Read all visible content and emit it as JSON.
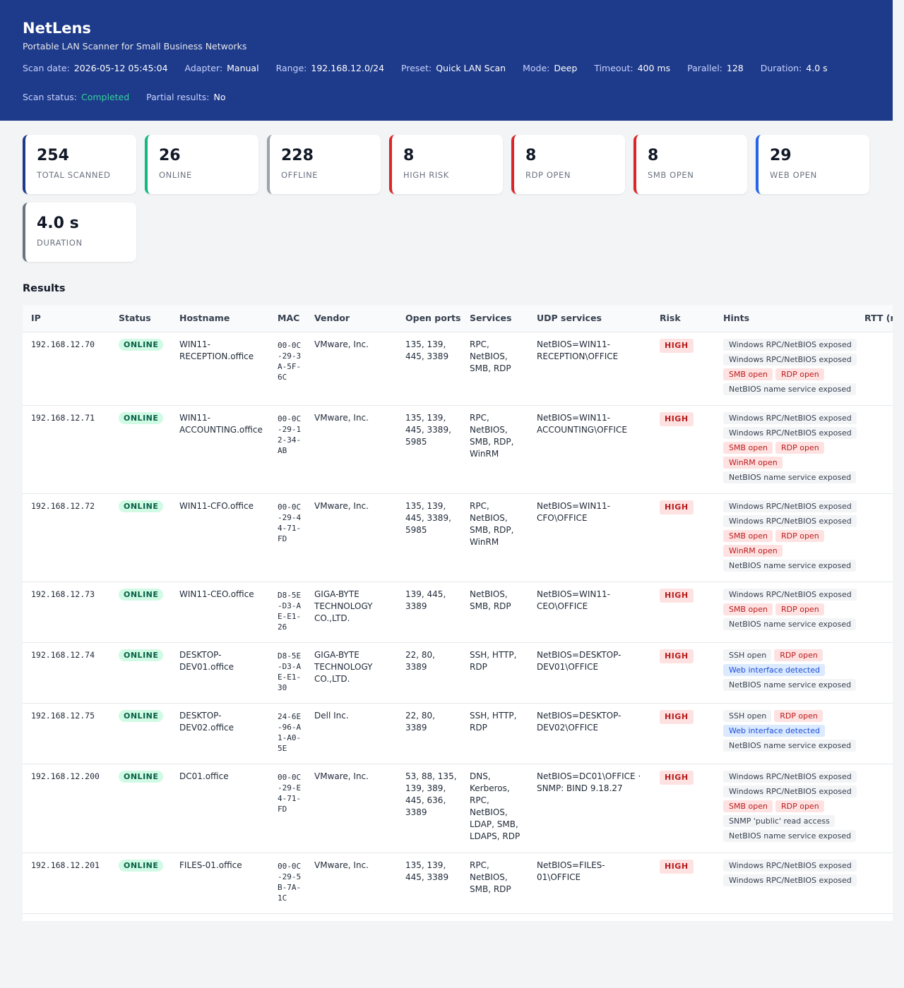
{
  "app": {
    "title": "NetLens",
    "subtitle": "Portable LAN Scanner for Small Business Networks"
  },
  "scan_meta": [
    {
      "key": "Scan date:",
      "value": "2026-05-12 05:45:04"
    },
    {
      "key": "Adapter:",
      "value": "Manual"
    },
    {
      "key": "Range:",
      "value": "192.168.12.0/24"
    },
    {
      "key": "Preset:",
      "value": "Quick LAN Scan"
    },
    {
      "key": "Mode:",
      "value": "Deep"
    },
    {
      "key": "Timeout:",
      "value": "400 ms"
    },
    {
      "key": "Parallel:",
      "value": "128"
    },
    {
      "key": "Duration:",
      "value": "4.0 s"
    }
  ],
  "scan_status": {
    "key": "Scan status:",
    "value": "Completed",
    "color": "#34d399"
  },
  "partial_results": {
    "key": "Partial results:",
    "value": "No"
  },
  "summary_cards": [
    {
      "value": "254",
      "label": "TOTAL SCANNED",
      "accent": "#1e3a8a"
    },
    {
      "value": "26",
      "label": "ONLINE",
      "accent": "#10b981"
    },
    {
      "value": "228",
      "label": "OFFLINE",
      "accent": "#9ca3af"
    },
    {
      "value": "8",
      "label": "HIGH RISK",
      "accent": "#dc2626"
    },
    {
      "value": "8",
      "label": "RDP OPEN",
      "accent": "#dc2626"
    },
    {
      "value": "8",
      "label": "SMB OPEN",
      "accent": "#dc2626"
    },
    {
      "value": "29",
      "label": "WEB OPEN",
      "accent": "#2563eb"
    },
    {
      "value": "4.0 s",
      "label": "DURATION",
      "accent": "#6b7280"
    }
  ],
  "results": {
    "title": "Results",
    "columns": [
      "IP",
      "Status",
      "Hostname",
      "MAC",
      "Vendor",
      "Open ports",
      "Services",
      "UDP services",
      "Risk",
      "Hints",
      "RTT (ms)"
    ],
    "rows": [
      {
        "ip": "192.168.12.70",
        "status": "ONLINE",
        "hostname": "WIN11-RECEPTION.office",
        "mac": "00-0C-29-3A-5F-6C",
        "vendor": "VMware, Inc.",
        "ports": "135, 139, 445, 3389",
        "services": "RPC, NetBIOS, SMB, RDP",
        "udp": "NetBIOS=WIN11-RECEPTION\\OFFICE",
        "risk": "HIGH",
        "hints": [
          {
            "text": "Windows RPC/NetBIOS exposed",
            "kind": "neutral"
          },
          {
            "text": "Windows RPC/NetBIOS exposed",
            "kind": "neutral"
          },
          {
            "text": "SMB open",
            "kind": "danger"
          },
          {
            "text": "RDP open",
            "kind": "danger"
          },
          {
            "text": "NetBIOS name service exposed",
            "kind": "neutral"
          }
        ]
      },
      {
        "ip": "192.168.12.71",
        "status": "ONLINE",
        "hostname": "WIN11-ACCOUNTING.office",
        "mac": "00-0C-29-12-34-AB",
        "vendor": "VMware, Inc.",
        "ports": "135, 139, 445, 3389, 5985",
        "services": "RPC, NetBIOS, SMB, RDP, WinRM",
        "udp": "NetBIOS=WIN11-ACCOUNTING\\OFFICE",
        "risk": "HIGH",
        "hints": [
          {
            "text": "Windows RPC/NetBIOS exposed",
            "kind": "neutral"
          },
          {
            "text": "Windows RPC/NetBIOS exposed",
            "kind": "neutral"
          },
          {
            "text": "SMB open",
            "kind": "danger"
          },
          {
            "text": "RDP open",
            "kind": "danger"
          },
          {
            "text": "WinRM open",
            "kind": "danger"
          },
          {
            "text": "NetBIOS name service exposed",
            "kind": "neutral"
          }
        ]
      },
      {
        "ip": "192.168.12.72",
        "status": "ONLINE",
        "hostname": "WIN11-CFO.office",
        "mac": "00-0C-29-44-71-FD",
        "vendor": "VMware, Inc.",
        "ports": "135, 139, 445, 3389, 5985",
        "services": "RPC, NetBIOS, SMB, RDP, WinRM",
        "udp": "NetBIOS=WIN11-CFO\\OFFICE",
        "risk": "HIGH",
        "hints": [
          {
            "text": "Windows RPC/NetBIOS exposed",
            "kind": "neutral"
          },
          {
            "text": "Windows RPC/NetBIOS exposed",
            "kind": "neutral"
          },
          {
            "text": "SMB open",
            "kind": "danger"
          },
          {
            "text": "RDP open",
            "kind": "danger"
          },
          {
            "text": "WinRM open",
            "kind": "danger"
          },
          {
            "text": "NetBIOS name service exposed",
            "kind": "neutral"
          }
        ]
      },
      {
        "ip": "192.168.12.73",
        "status": "ONLINE",
        "hostname": "WIN11-CEO.office",
        "mac": "D8-5E-D3-AE-E1-26",
        "vendor": "GIGA-BYTE TECHNOLOGY CO.,LTD.",
        "ports": "139, 445, 3389",
        "services": "NetBIOS, SMB, RDP",
        "udp": "NetBIOS=WIN11-CEO\\OFFICE",
        "risk": "HIGH",
        "hints": [
          {
            "text": "Windows RPC/NetBIOS exposed",
            "kind": "neutral"
          },
          {
            "text": "SMB open",
            "kind": "danger"
          },
          {
            "text": "RDP open",
            "kind": "danger"
          },
          {
            "text": "NetBIOS name service exposed",
            "kind": "neutral"
          }
        ]
      },
      {
        "ip": "192.168.12.74",
        "status": "ONLINE",
        "hostname": "DESKTOP-DEV01.office",
        "mac": "D8-5E-D3-AE-E1-30",
        "vendor": "GIGA-BYTE TECHNOLOGY CO.,LTD.",
        "ports": "22, 80, 3389",
        "services": "SSH, HTTP, RDP",
        "udp": "NetBIOS=DESKTOP-DEV01\\OFFICE",
        "risk": "HIGH",
        "hints": [
          {
            "text": "SSH open",
            "kind": "neutral"
          },
          {
            "text": "RDP open",
            "kind": "danger"
          },
          {
            "text": "Web interface detected",
            "kind": "info"
          },
          {
            "text": "NetBIOS name service exposed",
            "kind": "neutral"
          }
        ]
      },
      {
        "ip": "192.168.12.75",
        "status": "ONLINE",
        "hostname": "DESKTOP-DEV02.office",
        "mac": "24-6E-96-A1-A0-5E",
        "vendor": "Dell Inc.",
        "ports": "22, 80, 3389",
        "services": "SSH, HTTP, RDP",
        "udp": "NetBIOS=DESKTOP-DEV02\\OFFICE",
        "risk": "HIGH",
        "hints": [
          {
            "text": "SSH open",
            "kind": "neutral"
          },
          {
            "text": "RDP open",
            "kind": "danger"
          },
          {
            "text": "Web interface detected",
            "kind": "info"
          },
          {
            "text": "NetBIOS name service exposed",
            "kind": "neutral"
          }
        ]
      },
      {
        "ip": "192.168.12.200",
        "status": "ONLINE",
        "hostname": "DC01.office",
        "mac": "00-0C-29-E4-71-FD",
        "vendor": "VMware, Inc.",
        "ports": "53, 88, 135, 139, 389, 445, 636, 3389",
        "services": "DNS, Kerberos, RPC, NetBIOS, LDAP, SMB, LDAPS, RDP",
        "udp": "NetBIOS=DC01\\OFFICE · SNMP: BIND 9.18.27",
        "risk": "HIGH",
        "hints": [
          {
            "text": "Windows RPC/NetBIOS exposed",
            "kind": "neutral"
          },
          {
            "text": "Windows RPC/NetBIOS exposed",
            "kind": "neutral"
          },
          {
            "text": "SMB open",
            "kind": "danger"
          },
          {
            "text": "RDP open",
            "kind": "danger"
          },
          {
            "text": "SNMP 'public' read access",
            "kind": "neutral"
          },
          {
            "text": "NetBIOS name service exposed",
            "kind": "neutral"
          }
        ]
      },
      {
        "ip": "192.168.12.201",
        "status": "ONLINE",
        "hostname": "FILES-01.office",
        "mac": "00-0C-29-5B-7A-1C",
        "vendor": "VMware, Inc.",
        "ports": "135, 139, 445, 3389",
        "services": "RPC, NetBIOS, SMB, RDP",
        "udp": "NetBIOS=FILES-01\\OFFICE",
        "risk": "HIGH",
        "hints": [
          {
            "text": "Windows RPC/NetBIOS exposed",
            "kind": "neutral"
          },
          {
            "text": "Windows RPC/NetBIOS exposed",
            "kind": "neutral"
          }
        ]
      }
    ]
  }
}
